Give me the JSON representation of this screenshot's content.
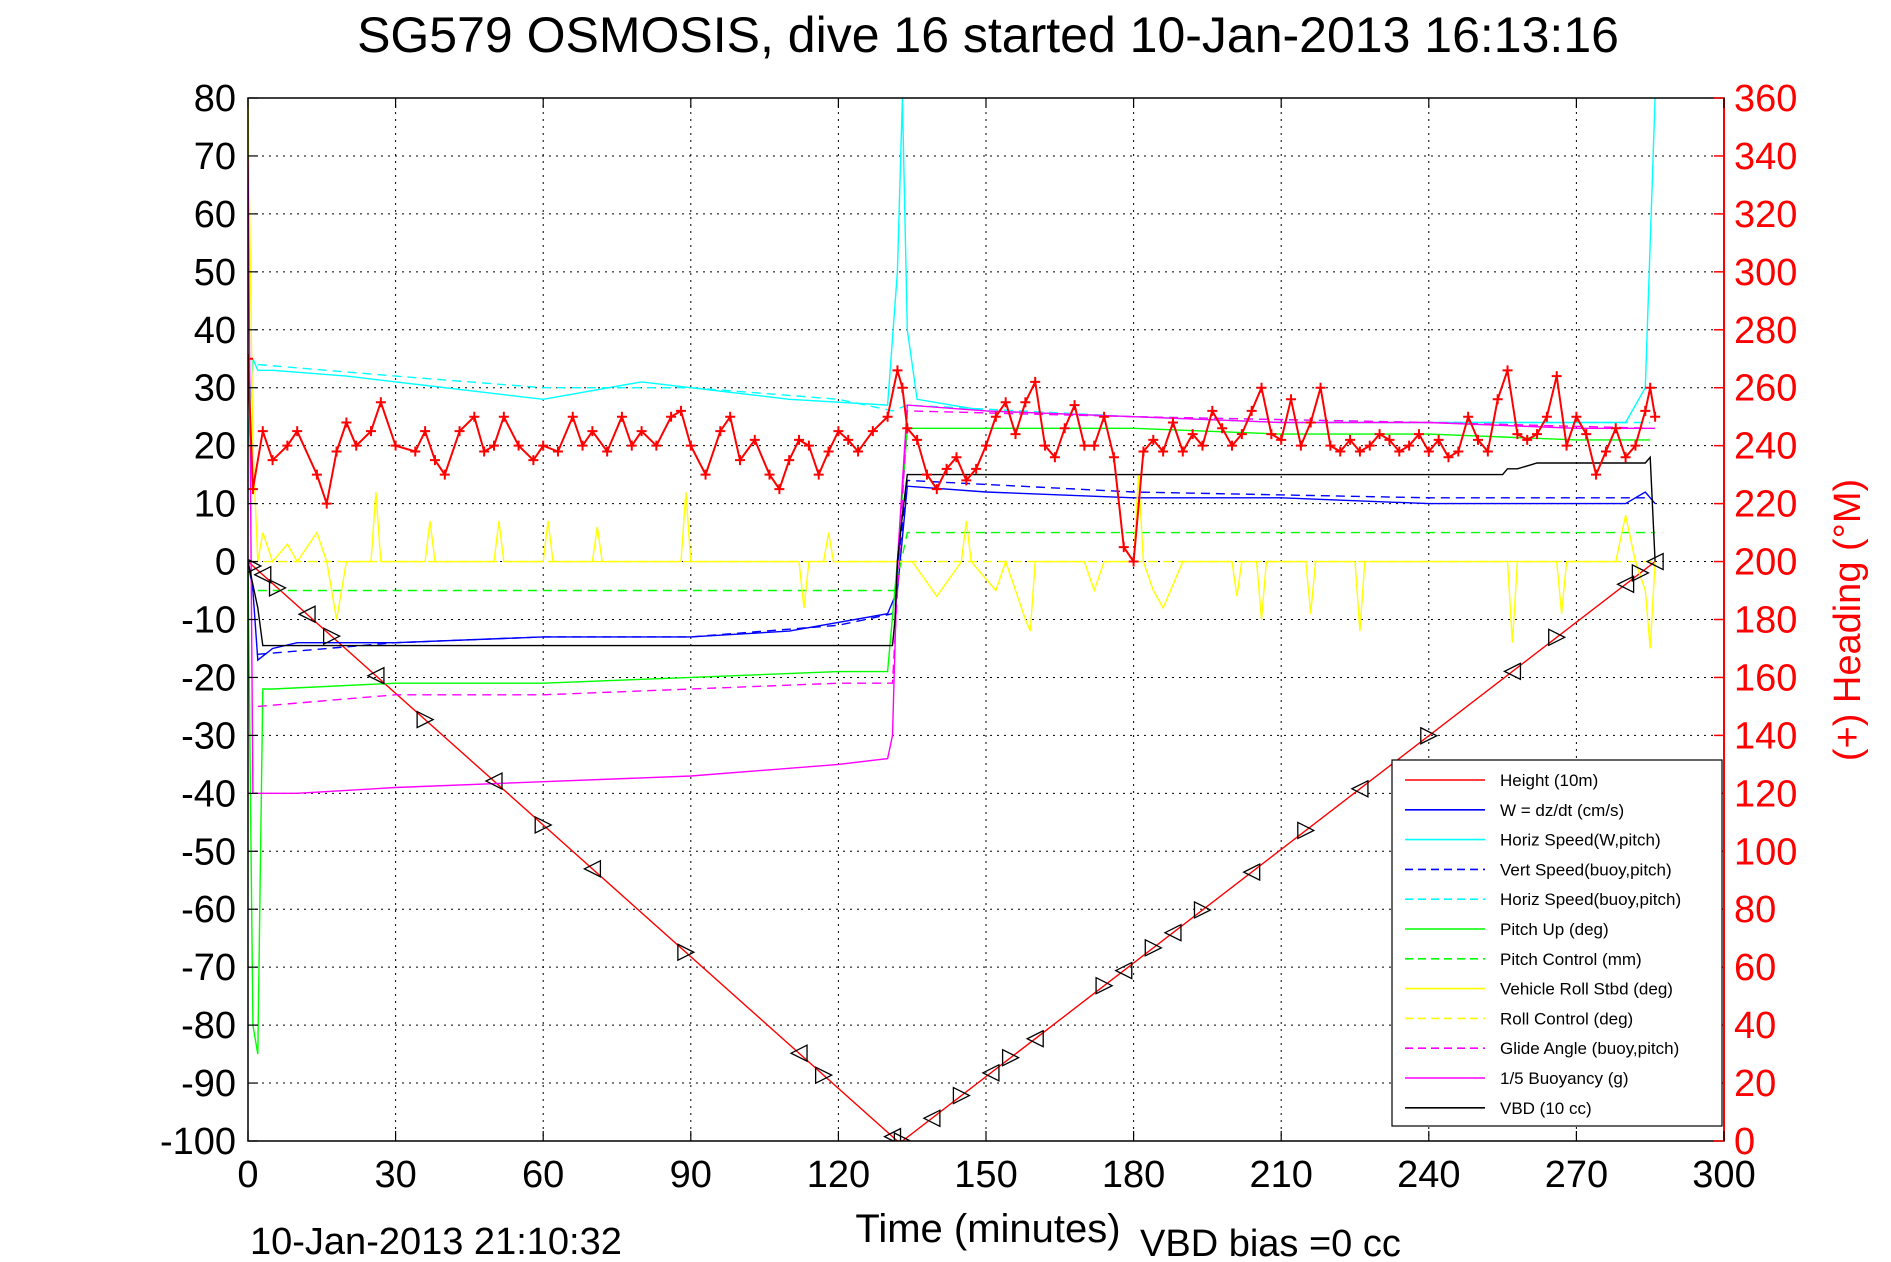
{
  "chart_data": {
    "type": "line",
    "title": "SG579 OSMOSIS, dive 16 started 10-Jan-2013 16:13:16",
    "xlabel": "Time (minutes)",
    "ylabel_right": "(+) Heading (°M)",
    "footer_left": "10-Jan-2013 21:10:32",
    "footer_right": "VBD bias =0 cc",
    "xlim": [
      0,
      300
    ],
    "ylim": [
      -100,
      80
    ],
    "ylim_right": [
      0,
      360
    ],
    "xticks": [
      "0",
      "30",
      "60",
      "90",
      "120",
      "150",
      "180",
      "210",
      "240",
      "270",
      "300"
    ],
    "yticks": [
      "80",
      "70",
      "60",
      "50",
      "40",
      "30",
      "20",
      "10",
      "0",
      "-10",
      "-20",
      "-30",
      "-40",
      "-50",
      "-60",
      "-70",
      "-80",
      "-90",
      "-100"
    ],
    "yticks_right": [
      "360",
      "340",
      "320",
      "300",
      "280",
      "260",
      "240",
      "220",
      "200",
      "180",
      "160",
      "140",
      "120",
      "100",
      "80",
      "60",
      "40",
      "20",
      "0"
    ],
    "grid": true,
    "legend_position": "bottom-right",
    "colors": {
      "height": "#ff0000",
      "w": "#0000ff",
      "horiz_speed": "#00ffff",
      "pitch": "#00ff00",
      "roll": "#ffff00",
      "glide": "#ff00ff",
      "vbd": "#000000",
      "heading": "#ff0000",
      "right_axis": "#ff0000"
    },
    "series": [
      {
        "name": "Height (10m)",
        "color": "#ff0000",
        "dash": false,
        "x": [
          0,
          132,
          133,
          286
        ],
        "y": [
          0,
          -100,
          -100,
          0
        ]
      },
      {
        "name": "W = dz/dt (cm/s)",
        "color": "#0000ff",
        "dash": false,
        "x": [
          0,
          1,
          2,
          5,
          10,
          20,
          30,
          60,
          90,
          110,
          130,
          132,
          134,
          150,
          180,
          210,
          240,
          270,
          280,
          284,
          286
        ],
        "y": [
          0,
          -5,
          -17,
          -15,
          -14,
          -14,
          -14,
          -13,
          -13,
          -12,
          -9,
          -5,
          13,
          12,
          11,
          11,
          10,
          10,
          10,
          12,
          10
        ]
      },
      {
        "name": "Horiz Speed(W,pitch)",
        "color": "#00ffff",
        "dash": false,
        "x": [
          0,
          1,
          2,
          5,
          20,
          40,
          60,
          80,
          90,
          110,
          130,
          132,
          133,
          134,
          136,
          150,
          180,
          210,
          240,
          270,
          280,
          284,
          286
        ],
        "y": [
          20,
          35,
          33,
          33,
          32,
          30,
          28,
          31,
          30,
          28,
          27,
          50,
          80,
          40,
          28,
          26,
          25,
          24,
          24,
          24,
          24,
          30,
          80
        ]
      },
      {
        "name": "Vert Speed(buoy,pitch)",
        "color": "#0000ff",
        "dash": true,
        "x": [
          2,
          30,
          60,
          90,
          120,
          131,
          134,
          180,
          240,
          285
        ],
        "y": [
          -16,
          -14,
          -13,
          -13,
          -11,
          -9,
          14,
          12,
          11,
          11
        ]
      },
      {
        "name": "Horiz Speed(buoy,pitch)",
        "color": "#00ffff",
        "dash": true,
        "x": [
          2,
          30,
          60,
          90,
          120,
          131,
          134,
          180,
          240,
          285
        ],
        "y": [
          34,
          32,
          30,
          30,
          28,
          26,
          27,
          25,
          24,
          24
        ]
      },
      {
        "name": "Pitch Up (deg)",
        "color": "#00ff00",
        "dash": false,
        "x": [
          0,
          1,
          2,
          3,
          5,
          30,
          60,
          90,
          120,
          130,
          132,
          134,
          150,
          180,
          210,
          240,
          270,
          285
        ],
        "y": [
          0,
          -80,
          -85,
          -22,
          -22,
          -21,
          -21,
          -20,
          -19,
          -19,
          0,
          23,
          23,
          23,
          22,
          22,
          21,
          21
        ]
      },
      {
        "name": "Pitch Control (mm)",
        "color": "#00ff00",
        "dash": true,
        "x": [
          2,
          131,
          131.5,
          134,
          286
        ],
        "y": [
          -5,
          -5,
          -5,
          5,
          5
        ]
      },
      {
        "name": "Vehicle Roll Stbd (deg)",
        "color": "#ffff00",
        "dash": false,
        "x": [
          0,
          1,
          2,
          3,
          5,
          8,
          10,
          14,
          16,
          18,
          20,
          25,
          26,
          27,
          30,
          36,
          37,
          38,
          50,
          51,
          52,
          60,
          61,
          62,
          70,
          71,
          72,
          88,
          89,
          90,
          112,
          113,
          114,
          117,
          118,
          119,
          130,
          135,
          140,
          145,
          146,
          147,
          152,
          154,
          158,
          159,
          160,
          170,
          172,
          174,
          180,
          181,
          182,
          184,
          186,
          190,
          200,
          201,
          202,
          205,
          206,
          207,
          215,
          216,
          217,
          225,
          226,
          227,
          240,
          256,
          257,
          258,
          266,
          267,
          268,
          278,
          280,
          282,
          284,
          285,
          286
        ],
        "y": [
          80,
          20,
          0,
          5,
          0,
          3,
          0,
          5,
          0,
          -10,
          0,
          0,
          12,
          0,
          0,
          0,
          7,
          0,
          0,
          7,
          0,
          0,
          7,
          0,
          0,
          6,
          0,
          0,
          12,
          0,
          0,
          -8,
          0,
          0,
          5,
          0,
          0,
          0,
          -6,
          0,
          7,
          0,
          -5,
          0,
          -10,
          -12,
          0,
          0,
          -5,
          0,
          0,
          15,
          0,
          -5,
          -8,
          0,
          0,
          -6,
          0,
          0,
          -10,
          0,
          0,
          -9,
          0,
          0,
          -12,
          0,
          0,
          0,
          -14,
          0,
          0,
          -9,
          0,
          0,
          8,
          0,
          -5,
          -15,
          0
        ]
      },
      {
        "name": "Roll Control (deg)",
        "color": "#ffff00",
        "dash": true,
        "x": [
          0,
          286
        ],
        "y": [
          0,
          0
        ]
      },
      {
        "name": "Glide Angle (buoy,pitch)",
        "color": "#ff00ff",
        "dash": true,
        "x": [
          2,
          30,
          60,
          90,
          120,
          131,
          134,
          180,
          240,
          285
        ],
        "y": [
          -25,
          -23,
          -23,
          -22,
          -21,
          -21,
          26,
          25,
          24,
          23
        ]
      },
      {
        "name": "1/5 Buoyancy (g)",
        "color": "#ff00ff",
        "dash": false,
        "x": [
          0,
          1,
          2,
          3,
          10,
          30,
          60,
          90,
          120,
          130,
          131,
          132,
          134,
          150,
          180,
          210,
          240,
          270,
          284,
          286
        ],
        "y": [
          70,
          -40,
          -40,
          -40,
          -40,
          -39,
          -38,
          -37,
          -35,
          -34,
          -30,
          0,
          27,
          26,
          25,
          24,
          24,
          23,
          23,
          23
        ]
      },
      {
        "name": "VBD (10 cc)",
        "color": "#000000",
        "dash": false,
        "x": [
          0,
          2,
          3,
          131,
          131.5,
          132,
          133,
          134,
          135,
          255,
          256,
          258,
          260,
          262,
          270,
          284,
          285,
          286
        ],
        "y": [
          0,
          -8,
          -14.5,
          -14.5,
          -10,
          0,
          8,
          15,
          15,
          15,
          16,
          16,
          16.5,
          17,
          17,
          17,
          18,
          0
        ]
      }
    ],
    "heading": {
      "name": "Heading (°M)",
      "axis": "right",
      "color": "#ff0000",
      "marker": "+",
      "x": [
        0,
        1,
        3,
        5,
        8,
        10,
        14,
        16,
        18,
        20,
        22,
        25,
        27,
        30,
        34,
        36,
        38,
        40,
        43,
        46,
        48,
        50,
        52,
        55,
        58,
        60,
        63,
        66,
        68,
        70,
        73,
        76,
        78,
        80,
        83,
        86,
        88,
        90,
        93,
        96,
        98,
        100,
        103,
        106,
        108,
        110,
        112,
        114,
        116,
        118,
        120,
        122,
        124,
        127,
        130,
        132,
        133,
        134,
        136,
        138,
        140,
        142,
        144,
        146,
        148,
        150,
        152,
        154,
        156,
        158,
        160,
        162,
        164,
        166,
        168,
        170,
        172,
        174,
        176,
        178,
        180,
        182,
        184,
        186,
        188,
        190,
        192,
        194,
        196,
        198,
        200,
        202,
        204,
        206,
        208,
        210,
        212,
        214,
        216,
        218,
        220,
        222,
        224,
        226,
        228,
        230,
        232,
        234,
        236,
        238,
        240,
        242,
        244,
        246,
        248,
        250,
        252,
        254,
        256,
        258,
        260,
        262,
        264,
        266,
        268,
        270,
        272,
        274,
        276,
        278,
        280,
        282,
        284,
        285,
        286
      ],
      "y": [
        270,
        225,
        245,
        235,
        240,
        245,
        230,
        220,
        238,
        248,
        240,
        245,
        255,
        240,
        238,
        245,
        235,
        230,
        245,
        250,
        238,
        240,
        250,
        240,
        235,
        240,
        238,
        250,
        240,
        245,
        238,
        250,
        240,
        245,
        240,
        250,
        252,
        240,
        230,
        245,
        250,
        235,
        242,
        230,
        225,
        235,
        242,
        240,
        230,
        238,
        245,
        242,
        238,
        245,
        250,
        266,
        260,
        246,
        242,
        230,
        225,
        232,
        236,
        228,
        232,
        240,
        250,
        255,
        244,
        255,
        262,
        240,
        236,
        246,
        254,
        240,
        240,
        250,
        236,
        205,
        200,
        238,
        242,
        238,
        248,
        238,
        244,
        240,
        252,
        246,
        240,
        244,
        252,
        260,
        244,
        242,
        256,
        240,
        248,
        260,
        240,
        238,
        242,
        238,
        240,
        244,
        242,
        238,
        240,
        244,
        238,
        242,
        236,
        238,
        250,
        242,
        238,
        256,
        266,
        244,
        242,
        244,
        250,
        264,
        240,
        250,
        244,
        230,
        238,
        246,
        236,
        240,
        252,
        260,
        250
      ]
    }
  }
}
